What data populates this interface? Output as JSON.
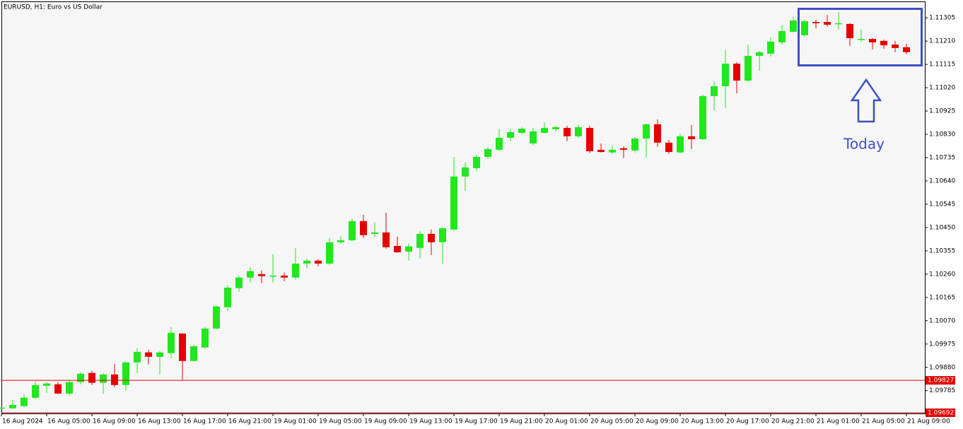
{
  "chart_data": {
    "type": "candlestick",
    "title": "EURUSD, H1:  Euro vs US Dollar",
    "annotation": "Today",
    "bull_color": "#22e61e",
    "bear_color": "#e60000",
    "categories": [
      "16 Aug 2024",
      null,
      null,
      null,
      "16 Aug 05:00",
      null,
      null,
      null,
      "16 Aug 09:00",
      null,
      null,
      null,
      "16 Aug 13:00",
      null,
      null,
      null,
      "16 Aug 17:00",
      null,
      null,
      null,
      "16 Aug 21:00",
      null,
      null,
      null,
      "19 Aug 01:00",
      null,
      null,
      null,
      "19 Aug 05:00",
      null,
      null,
      null,
      "19 Aug 09:00",
      null,
      null,
      null,
      "19 Aug 13:00",
      null,
      null,
      null,
      "19 Aug 17:00",
      null,
      null,
      null,
      "19 Aug 21:00",
      null,
      null,
      null,
      "20 Aug 01:00",
      null,
      null,
      null,
      "20 Aug 05:00",
      null,
      null,
      null,
      "20 Aug 09:00",
      null,
      null,
      null,
      "20 Aug 13:00",
      null,
      null,
      null,
      "20 Aug 17:00",
      null,
      null,
      null,
      "20 Aug 21:00",
      null,
      null,
      null,
      "21 Aug 01:00",
      null,
      null,
      null,
      "21 Aug 05:00",
      null,
      null,
      null,
      "21 Aug 09:00"
    ],
    "open": [
      1.09716,
      1.09713,
      1.09722,
      1.09756,
      1.09805,
      1.09811,
      1.09773,
      1.0982,
      1.09857,
      1.09817,
      1.09851,
      1.09808,
      1.099,
      1.09941,
      1.09923,
      1.09938,
      1.10018,
      1.09906,
      1.09961,
      1.10038,
      1.10125,
      1.10203,
      1.10246,
      1.1026,
      1.10252,
      1.10254,
      1.10246,
      1.10303,
      1.10315,
      1.10303,
      1.1039,
      1.10398,
      1.10476,
      1.10424,
      1.1043,
      1.10375,
      1.10352,
      1.10367,
      1.10424,
      1.1039,
      1.10442,
      1.10658,
      1.10692,
      1.10738,
      1.10767,
      1.10816,
      1.10836,
      1.10793,
      1.10836,
      1.10851,
      1.10856,
      1.10822,
      1.10856,
      1.10767,
      1.10756,
      1.10773,
      1.10764,
      1.10813,
      1.10871,
      1.10796,
      1.10756,
      1.10822,
      1.1081,
      1.10986,
      1.11026,
      1.11118,
      1.11049,
      1.1115,
      1.11159,
      1.11205,
      1.11248,
      1.11234,
      1.11288,
      1.11288,
      1.1128,
      1.1128,
      1.11216,
      1.11219,
      1.11211,
      1.11196,
      1.11185
    ],
    "high": [
      1.09719,
      1.09748,
      1.09771,
      1.09822,
      1.0982,
      1.0982,
      1.09828,
      1.0986,
      1.09866,
      1.09857,
      1.09894,
      1.09903,
      1.09958,
      1.09952,
      1.09946,
      1.10044,
      1.10018,
      1.09972,
      1.10044,
      1.10133,
      1.10214,
      1.10254,
      1.10289,
      1.10275,
      1.10341,
      1.10266,
      1.10367,
      1.10324,
      1.10321,
      1.10407,
      1.10416,
      1.10485,
      1.10502,
      1.10473,
      1.10511,
      1.10413,
      1.10384,
      1.10436,
      1.10442,
      1.1045,
      1.10738,
      1.10715,
      1.10747,
      1.10776,
      1.10853,
      1.10851,
      1.10859,
      1.10856,
      1.10879,
      1.10865,
      1.10865,
      1.10868,
      1.10865,
      1.10793,
      1.10784,
      1.10781,
      1.10819,
      1.10874,
      1.10891,
      1.10807,
      1.10833,
      1.10868,
      1.10992,
      1.11046,
      1.11173,
      1.11124,
      1.11196,
      1.1117,
      1.11225,
      1.11274,
      1.11309,
      1.11297,
      1.11297,
      1.11317,
      1.11329,
      1.11283,
      1.11257,
      1.11222,
      1.11216,
      1.11211,
      1.11199
    ],
    "low": [
      1.09713,
      1.0971,
      1.09719,
      1.0975,
      1.09776,
      1.09771,
      1.09765,
      1.09811,
      1.09808,
      1.09771,
      1.09799,
      1.09785,
      1.09857,
      1.09892,
      1.09851,
      1.09917,
      1.09828,
      1.09903,
      1.09955,
      1.10036,
      1.1011,
      1.10188,
      1.10226,
      1.10223,
      1.10226,
      1.10231,
      1.10237,
      1.10283,
      1.10292,
      1.10298,
      1.10384,
      1.10393,
      1.10407,
      1.1041,
      1.10364,
      1.10347,
      1.10315,
      1.10324,
      1.10338,
      1.10303,
      1.10436,
      1.106,
      1.10681,
      1.1073,
      1.10761,
      1.10802,
      1.1083,
      1.10784,
      1.10833,
      1.10842,
      1.10802,
      1.10816,
      1.10753,
      1.10756,
      1.1075,
      1.10733,
      1.10756,
      1.10735,
      1.10779,
      1.1075,
      1.10753,
      1.1077,
      1.10807,
      1.10928,
      1.10937,
      1.10997,
      1.11044,
      1.1109,
      1.11147,
      1.11196,
      1.11245,
      1.11228,
      1.11262,
      1.11268,
      1.11257,
      1.1119,
      1.11205,
      1.11176,
      1.11179,
      1.11165,
      1.11156
    ],
    "close": [
      1.09716,
      1.09727,
      1.09756,
      1.09808,
      1.09814,
      1.09773,
      1.0982,
      1.09854,
      1.09817,
      1.09851,
      1.09808,
      1.099,
      1.09943,
      1.09923,
      1.09941,
      1.10021,
      1.09906,
      1.09966,
      1.10038,
      1.10128,
      1.10205,
      1.10246,
      1.10272,
      1.10252,
      1.10254,
      1.10246,
      1.10303,
      1.10315,
      1.10303,
      1.1039,
      1.10398,
      1.10476,
      1.10419,
      1.1043,
      1.1037,
      1.10349,
      1.10373,
      1.10424,
      1.1039,
      1.10447,
      1.10658,
      1.10695,
      1.10738,
      1.1077,
      1.10816,
      1.10839,
      1.10853,
      1.10842,
      1.10856,
      1.10859,
      1.10822,
      1.10859,
      1.10761,
      1.10758,
      1.10767,
      1.10767,
      1.10813,
      1.10871,
      1.10796,
      1.10758,
      1.10822,
      1.1081,
      1.10986,
      1.11026,
      1.11118,
      1.11049,
      1.1115,
      1.11165,
      1.11208,
      1.11251,
      1.11294,
      1.11291,
      1.11283,
      1.11277,
      1.11283,
      1.11222,
      1.11219,
      1.11205,
      1.11193,
      1.11182,
      1.11165
    ],
    "ylim": [
      1.09692,
      1.11369
    ],
    "yticks": [
      1.09785,
      {
        "value": 1.0988,
        "label": "1.09880"
      },
      1.09975,
      {
        "value": 1.1007,
        "label": "1.10070"
      },
      1.10165,
      {
        "value": 1.1026,
        "label": "1.10260"
      },
      1.10355,
      {
        "value": 1.1045,
        "label": "1.10450"
      },
      1.10545,
      {
        "value": 1.1064,
        "label": "1.10640"
      },
      1.10735,
      {
        "value": 1.1083,
        "label": "1.10830"
      },
      1.10925,
      {
        "value": 1.1102,
        "label": "1.11020"
      },
      1.11115,
      {
        "value": 1.1121,
        "label": "1.11210"
      },
      1.11305
    ],
    "price_lines": [
      {
        "value": 1.09827,
        "color": "#e60000"
      },
      {
        "value": 1.09692,
        "color": "#e60000"
      }
    ]
  }
}
